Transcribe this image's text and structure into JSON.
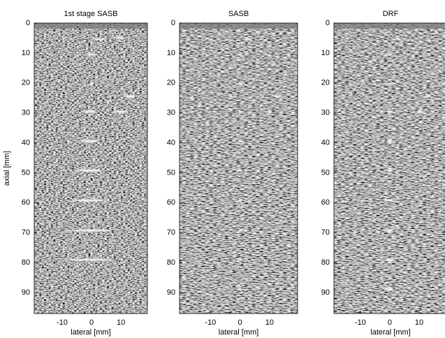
{
  "chart_data": [
    {
      "type": "image",
      "title": "1st stage SASB",
      "xlabel": "lateral [mm]",
      "ylabel": "axial [mm]",
      "xlim": [
        -19.5,
        19
      ],
      "xticks": [
        -10,
        0,
        10
      ],
      "ylim": [
        97,
        0
      ],
      "yticks": [
        0,
        10,
        20,
        30,
        40,
        50,
        60,
        70,
        80,
        90
      ]
    },
    {
      "type": "image",
      "title": "SASB",
      "xlabel": "lateral [mm]",
      "xlim": [
        -20.5,
        19.5
      ],
      "xticks": [
        -10,
        0,
        10
      ],
      "ylim": [
        97,
        0
      ],
      "yticks": [
        0,
        10,
        20,
        30,
        40,
        50,
        60,
        70,
        80,
        90
      ]
    },
    {
      "type": "image",
      "title": "DRF",
      "xlabel": "lateral [mm]",
      "xlim": [
        -19,
        19.5
      ],
      "xticks": [
        -10,
        0,
        10
      ],
      "ylim": [
        97,
        0
      ],
      "yticks": [
        0,
        10,
        20,
        30,
        40,
        50,
        60,
        70,
        80,
        90
      ]
    }
  ]
}
